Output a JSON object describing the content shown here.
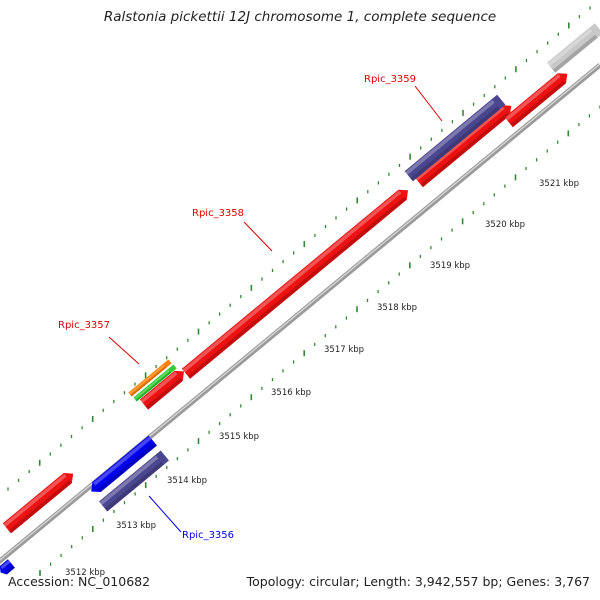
{
  "title": "Ralstonia pickettii 12J chromosome 1, complete sequence",
  "footer": {
    "accession": "Accession: NC_010682",
    "stats": "Topology: circular; Length: 3,942,557 bp; Genes: 3,767"
  },
  "scale_labels": [
    "3512 kbp",
    "3513 kbp",
    "3514 kbp",
    "3515 kbp",
    "3516 kbp",
    "3517 kbp",
    "3518 kbp",
    "3519 kbp",
    "3520 kbp",
    "3521 kbp"
  ],
  "genes": [
    {
      "name": "Rpic_3356",
      "label_color": "#0000ee",
      "bar_color": "#4b4690"
    },
    {
      "name": "Rpic_3357",
      "label_color": "#dd0000",
      "bar_color": "#ff7f00"
    },
    {
      "name": "Rpic_3358",
      "label_color": "#dd0000",
      "bar_color": "#ee1111"
    },
    {
      "name": "Rpic_3359",
      "label_color": "#dd0000",
      "bar_color": "#4b4690"
    }
  ],
  "colors": {
    "cds_forward": "#ee1111",
    "cds_reverse": "#0000ee",
    "gene_purple": "#4b4690",
    "rna_orange": "#ff7f00",
    "rna_green": "#33cc33",
    "other_gray": "#c8c8c8",
    "backbone": "#999999",
    "tick_green": "#338833"
  }
}
